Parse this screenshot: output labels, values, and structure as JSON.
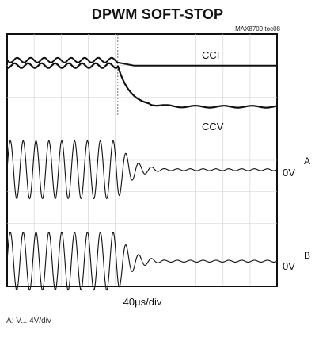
{
  "title": "DPWM SOFT-STOP",
  "figure_id": "MAX8709 toc08",
  "chart_data": {
    "type": "line",
    "title": "DPWM SOFT-STOP",
    "xlabel": "40μs/div",
    "x_divisions": 10,
    "y_divisions": 8,
    "grid": true,
    "stop_division": 4.1,
    "series": [
      {
        "name": "CCI",
        "role": "digital",
        "before_level": 0.9,
        "after_level": 1.0
      },
      {
        "name": "CCV",
        "role": "digital",
        "before_level": 1.0,
        "after_level": 2.3
      },
      {
        "name": "A",
        "role": "sine",
        "zero_label": "0V",
        "amplitude_div": 1.0,
        "cycles_per_div": 2.1,
        "decay": "ringdown"
      },
      {
        "name": "B",
        "role": "sine",
        "zero_label": "0V",
        "amplitude_div": 1.0,
        "cycles_per_div": 2.1,
        "decay": "ringdown"
      }
    ],
    "annotations": [
      "CCI",
      "CCV",
      "0V",
      "0V",
      "A",
      "B"
    ]
  },
  "labels": {
    "cci": "CCI",
    "ccv": "CCV",
    "zero_a": "0V",
    "zero_b": "0V",
    "ch_a": "A",
    "ch_b": "B",
    "timebase": "40μs/div"
  }
}
